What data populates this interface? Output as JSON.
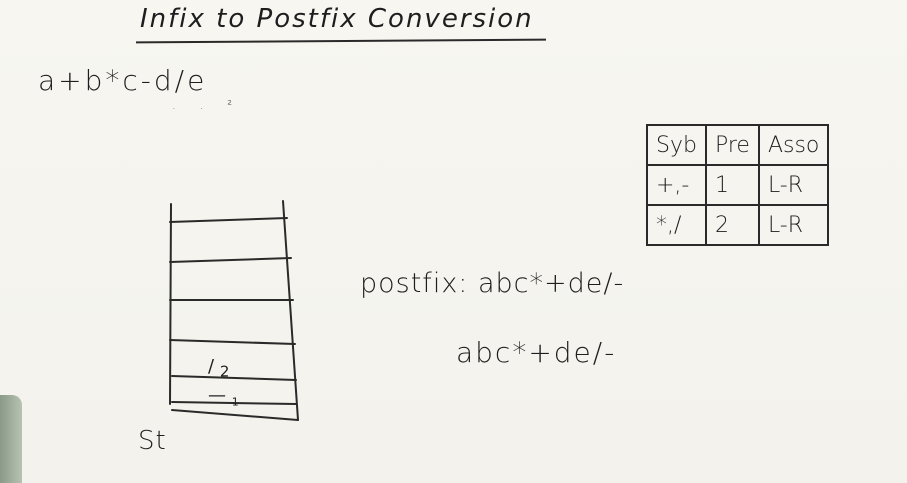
{
  "title": "Infix to Postfix Conversion",
  "expression": "a+b*c-d/e",
  "expression_marks": ". . ²",
  "stack": {
    "label": "St",
    "items": [
      {
        "symbol": "/",
        "number": "2"
      },
      {
        "symbol": "—",
        "number": "1"
      }
    ]
  },
  "precedence_table": {
    "headers": [
      "Syb",
      "Pre",
      "Asso"
    ],
    "rows": [
      [
        "+,-",
        "1",
        "L-R"
      ],
      [
        "*,/",
        "2",
        "L-R"
      ]
    ]
  },
  "postfix_line": "postfix: abc*+de/-",
  "result_line": "abc*+de/-"
}
